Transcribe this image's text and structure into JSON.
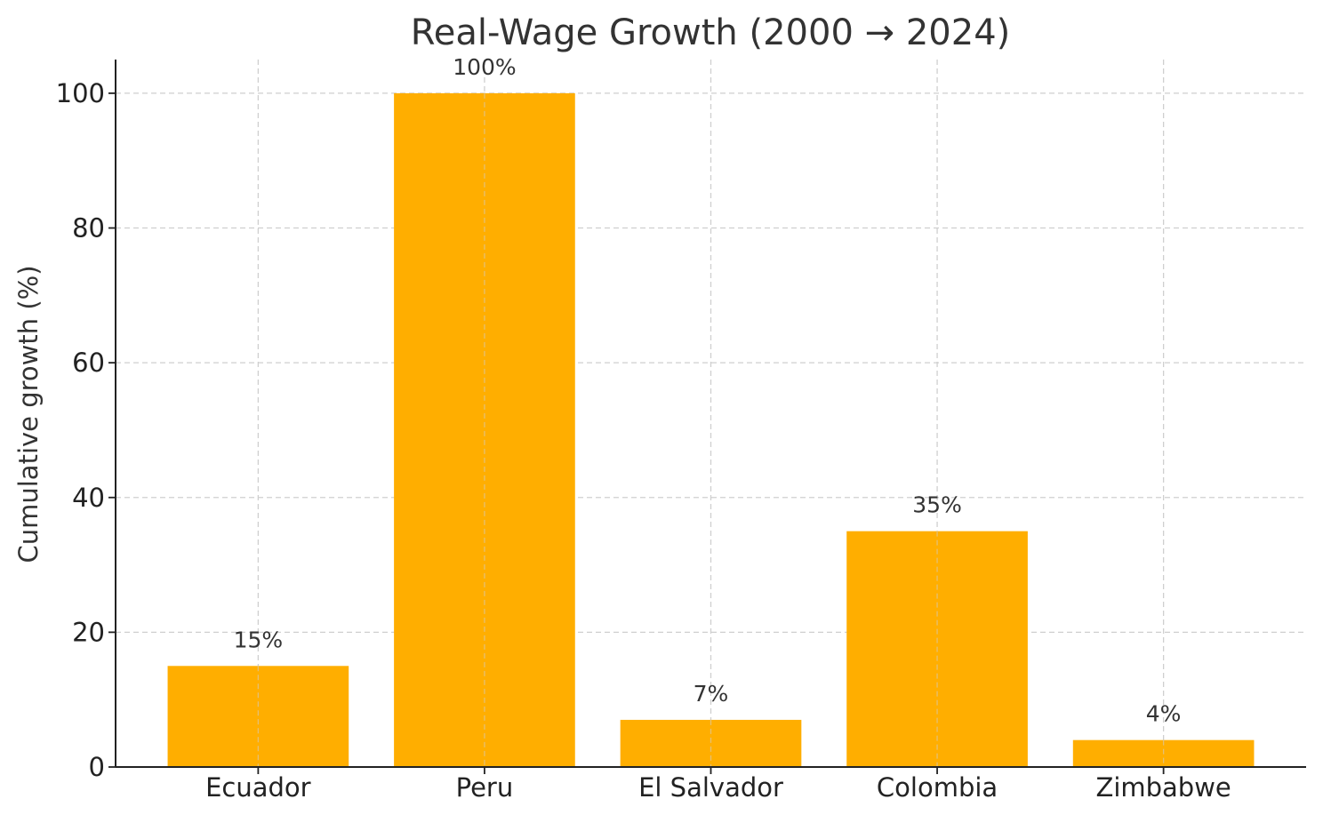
{
  "chart_data": {
    "type": "bar",
    "title": "Real-Wage Growth (2000 → 2024)",
    "xlabel": "",
    "ylabel": "Cumulative growth (%)",
    "categories": [
      "Ecuador",
      "Peru",
      "El Salvador",
      "Colombia",
      "Zimbabwe"
    ],
    "values": [
      15,
      100,
      7,
      35,
      4
    ],
    "data_labels": [
      "15%",
      "100%",
      "7%",
      "35%",
      "4%"
    ],
    "y_ticks": [
      0,
      20,
      40,
      60,
      80,
      100
    ],
    "ylim": [
      0,
      105
    ],
    "grid": true,
    "legend": "none",
    "bar_color": "#FFAE00"
  }
}
